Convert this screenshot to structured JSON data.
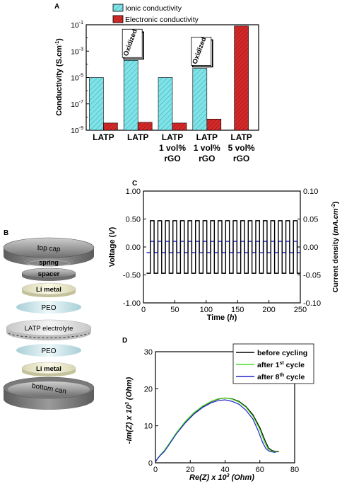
{
  "chart_data": [
    {
      "panel": "A",
      "type": "bar",
      "ylabel": "Conductivity (S.cm",
      "ylabel_sup": "-1",
      "ylabel_end": ")",
      "yscale": "log",
      "ylim": [
        1e-09,
        0.1
      ],
      "yticks": [
        {
          "base": "10",
          "exp": "-1",
          "value": 0.1
        },
        {
          "base": "10",
          "exp": "-3",
          "value": 0.001
        },
        {
          "base": "10",
          "exp": "-5",
          "value": 1e-05
        },
        {
          "base": "10",
          "exp": "-7",
          "value": 1e-07
        },
        {
          "base": "10",
          "exp": "-9",
          "value": 1e-09
        }
      ],
      "categories": [
        [
          "LATP"
        ],
        [
          "LATP"
        ],
        [
          "LATP",
          "1 vol%",
          "rGO"
        ],
        [
          "LATP",
          "1 vol%",
          "rGO"
        ],
        [
          "LATP",
          "5 vol%",
          "rGO"
        ]
      ],
      "annotations": [
        {
          "category": 1,
          "text": "Oxidized"
        },
        {
          "category": 3,
          "text": "Oxidized"
        }
      ],
      "series": [
        {
          "name": "Ionic conductivity",
          "color": "#7fe3e8",
          "values": [
            1e-05,
            0.0002,
            1e-05,
            5e-05,
            null
          ]
        },
        {
          "name": "Electronic conductivity",
          "color": "#d42a2a",
          "values": [
            3.5e-09,
            4e-09,
            3.5e-09,
            7e-09,
            0.08
          ]
        }
      ],
      "legend": "top"
    },
    {
      "panel": "B",
      "type": "diagram",
      "layers": [
        "top cap",
        "spring",
        "spacer",
        "Li metal",
        "PEO",
        "LATP electrolyte",
        "PEO",
        "Li metal",
        "bottom can"
      ]
    },
    {
      "panel": "C",
      "type": "line",
      "xlabel": "Time (",
      "xlabel_italic": "h",
      "xlabel_end": ")",
      "ylabel": "Voltage (",
      "ylabel_italic": "V",
      "ylabel_end": ")",
      "y2label": "Current density (",
      "y2label_italic": "mA.cm",
      "y2label_sup": "-2",
      "y2label_end": ")",
      "xlim": [
        0,
        250
      ],
      "ylim": [
        -1.0,
        1.0
      ],
      "y2lim": [
        -0.1,
        0.1
      ],
      "xticks": [
        "0",
        "50",
        "100",
        "150",
        "200",
        "250"
      ],
      "yticks": [
        "-1.00",
        "-0.50",
        "0.00",
        "0.50",
        "1.00"
      ],
      "y2ticks": [
        "-0.10",
        "-0.05",
        "0.00",
        "0.05",
        "0.10"
      ],
      "voltage": {
        "amplitude": 0.47,
        "period_h": 12,
        "start_h": 5,
        "end_h": 250,
        "color": "#000000"
      },
      "current": {
        "amplitude": 0.01,
        "period_h": 12,
        "start_h": 5,
        "end_h": 250,
        "color": "#2222cc"
      }
    },
    {
      "panel": "D",
      "type": "line",
      "xlabel": "Re(Z) x 10",
      "xlabel_sup": "3",
      "xlabel_end": " (Ohm)",
      "ylabel": "-Im(Z) x 10",
      "ylabel_sup": "3",
      "ylabel_end": " (Ohm)",
      "xlim": [
        0,
        80
      ],
      "ylim": [
        0,
        30
      ],
      "xticks": [
        "0",
        "20",
        "40",
        "60",
        "80"
      ],
      "yticks": [
        "0",
        "10",
        "20",
        "30"
      ],
      "legend": "top-right",
      "series": [
        {
          "name": "before cycling",
          "name_sup": "",
          "name_end": "",
          "color": "#000000",
          "x": [
            0,
            1,
            3,
            5,
            8,
            12,
            17,
            22,
            27,
            32,
            36,
            40,
            44,
            48,
            52,
            56,
            60,
            63,
            65,
            67,
            69,
            71
          ],
          "y": [
            0.2,
            1,
            2.2,
            3.2,
            5.2,
            8,
            11,
            13.4,
            15.2,
            16.5,
            17.2,
            17.5,
            17.3,
            16.6,
            15.2,
            13,
            9.5,
            6,
            4,
            3.3,
            3.1,
            3.0
          ]
        },
        {
          "name": "after 1",
          "name_sup": "st",
          "name_end": " cycle",
          "color": "#44dd22",
          "x": [
            0,
            1,
            3,
            5,
            8,
            12,
            17,
            22,
            27,
            32,
            36,
            40,
            44,
            48,
            52,
            56,
            60,
            62.5,
            64.5,
            66.5,
            68.5,
            70
          ],
          "y": [
            0.2,
            1,
            2.3,
            3.3,
            5.3,
            8.1,
            11.1,
            13.5,
            15.3,
            16.6,
            17.3,
            17.5,
            17.2,
            16.4,
            15,
            12.6,
            9,
            5.8,
            3.9,
            3.2,
            3.0,
            2.9
          ]
        },
        {
          "name": "after 8",
          "name_sup": "th",
          "name_end": " cycle",
          "color": "#2222cc",
          "x": [
            0,
            1,
            3,
            5,
            8,
            12,
            17,
            22,
            27,
            32,
            36,
            40,
            44,
            48,
            52,
            56,
            59,
            61.5,
            63.5,
            65.5,
            67.5,
            69
          ],
          "y": [
            0.2,
            1,
            2.1,
            3.0,
            5.0,
            7.8,
            10.7,
            13.1,
            14.9,
            16.2,
            16.8,
            17.0,
            16.6,
            15.8,
            14.2,
            11.8,
            8.7,
            5.6,
            3.8,
            3.1,
            2.9,
            2.8
          ]
        }
      ]
    }
  ],
  "labels": {
    "a": "A",
    "b": "B",
    "c": "C",
    "d": "D"
  }
}
